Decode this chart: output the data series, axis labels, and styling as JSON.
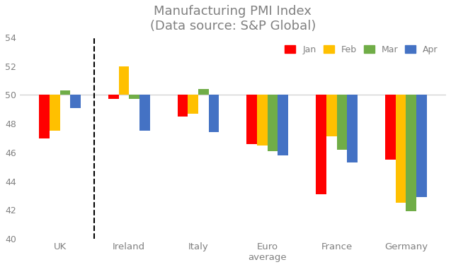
{
  "title": "Manufacturing PMI Index\n(Data source: S&P Global)",
  "categories": [
    "UK",
    "Ireland",
    "Italy",
    "Euro\naverage",
    "France",
    "Germany"
  ],
  "months": [
    "Jan",
    "Feb",
    "Mar",
    "Apr"
  ],
  "colors": [
    "#FF0000",
    "#FFC000",
    "#70AD47",
    "#4472C4"
  ],
  "baseline": 50,
  "values": {
    "UK": [
      47.0,
      47.5,
      50.3,
      49.1
    ],
    "Ireland": [
      49.7,
      52.0,
      49.7,
      47.5
    ],
    "Italy": [
      48.5,
      48.7,
      50.4,
      47.4
    ],
    "Euro\naverage": [
      46.6,
      46.5,
      46.1,
      45.8
    ],
    "France": [
      43.1,
      47.1,
      46.2,
      45.3
    ],
    "Germany": [
      45.5,
      42.5,
      41.9,
      42.9
    ]
  },
  "ylim": [
    40,
    54
  ],
  "yticks": [
    40,
    42,
    44,
    46,
    48,
    50,
    52,
    54
  ],
  "background_color": "#FFFFFF",
  "bar_width": 0.15,
  "figsize": [
    6.37,
    3.78
  ],
  "dpi": 100
}
